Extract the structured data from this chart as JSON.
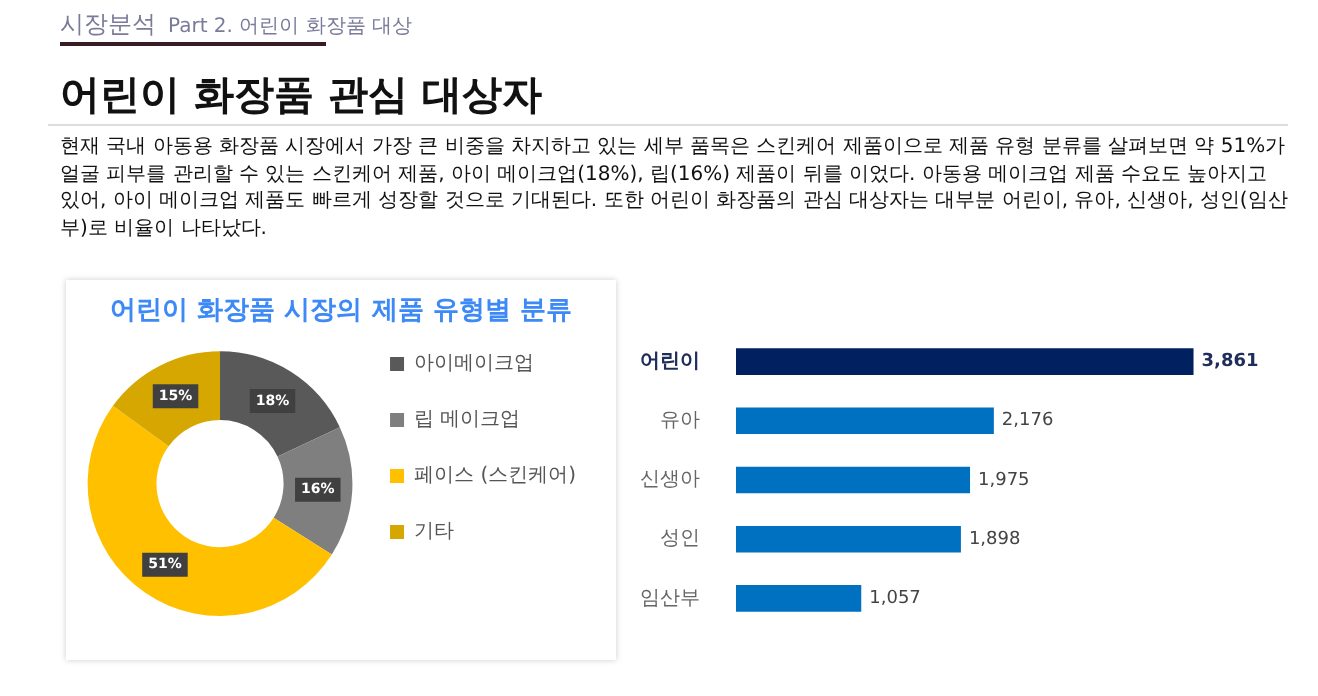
{
  "chart_data": [
    {
      "type": "other",
      "title": "어린이 화장품 관심 대상자",
      "annotations": [
        "시장분석",
        "Part 2. 어린이 화장품 대상"
      ],
      "subtitle": "현재 국내 아동용 화장품 시장에서 가장 큰 비중을 차지하고 있는 세부 품목은 스킨케어 제품이으로 제품 유형 분류를 살펴보면 약 51%가 얼굴 피부를 관리할 수 있는 스킨케어 제품, 아이 메이크업(18%), 립(16%) 제품이 뒤를 이었다. 아동용 메이크업 제품 수요도 높아지고 있어, 아이 메이크업 제품도 빠르게 성장할 것으로 기대된다. 또한 어린이 화장품의 관심 대상자는 대부분 어린이, 유아, 신생아, 성인(임산부)로 비율이 나타났다."
    },
    {
      "type": "donut",
      "title": "어린이 화장품 시장의 제품 유형별 분류",
      "categories": [
        "아이메이크업",
        "립 메이크업",
        "페이스 (스킨케어)",
        "기타"
      ],
      "values": [
        18,
        16,
        51,
        15
      ],
      "colors": [
        "#595959",
        "#7f7f7f",
        "#ffc000",
        "#d6a700"
      ],
      "value_labels": [
        "18%",
        "16%",
        "51%",
        "15%"
      ],
      "legend": "right"
    },
    {
      "type": "bar",
      "orientation": "horizontal",
      "categories": [
        "어린이",
        "유아",
        "신생아",
        "성인",
        "임산부"
      ],
      "values": [
        3861,
        2176,
        1975,
        1898,
        1057
      ],
      "colors": [
        "#002060",
        "#0070c0",
        "#0070c0",
        "#0070c0",
        "#0070c0"
      ],
      "value_labels": [
        "3,861",
        "2,176",
        "1,975",
        "1,898",
        "1,057"
      ],
      "tick_labels": "y",
      "grid": false,
      "legend": false
    }
  ]
}
